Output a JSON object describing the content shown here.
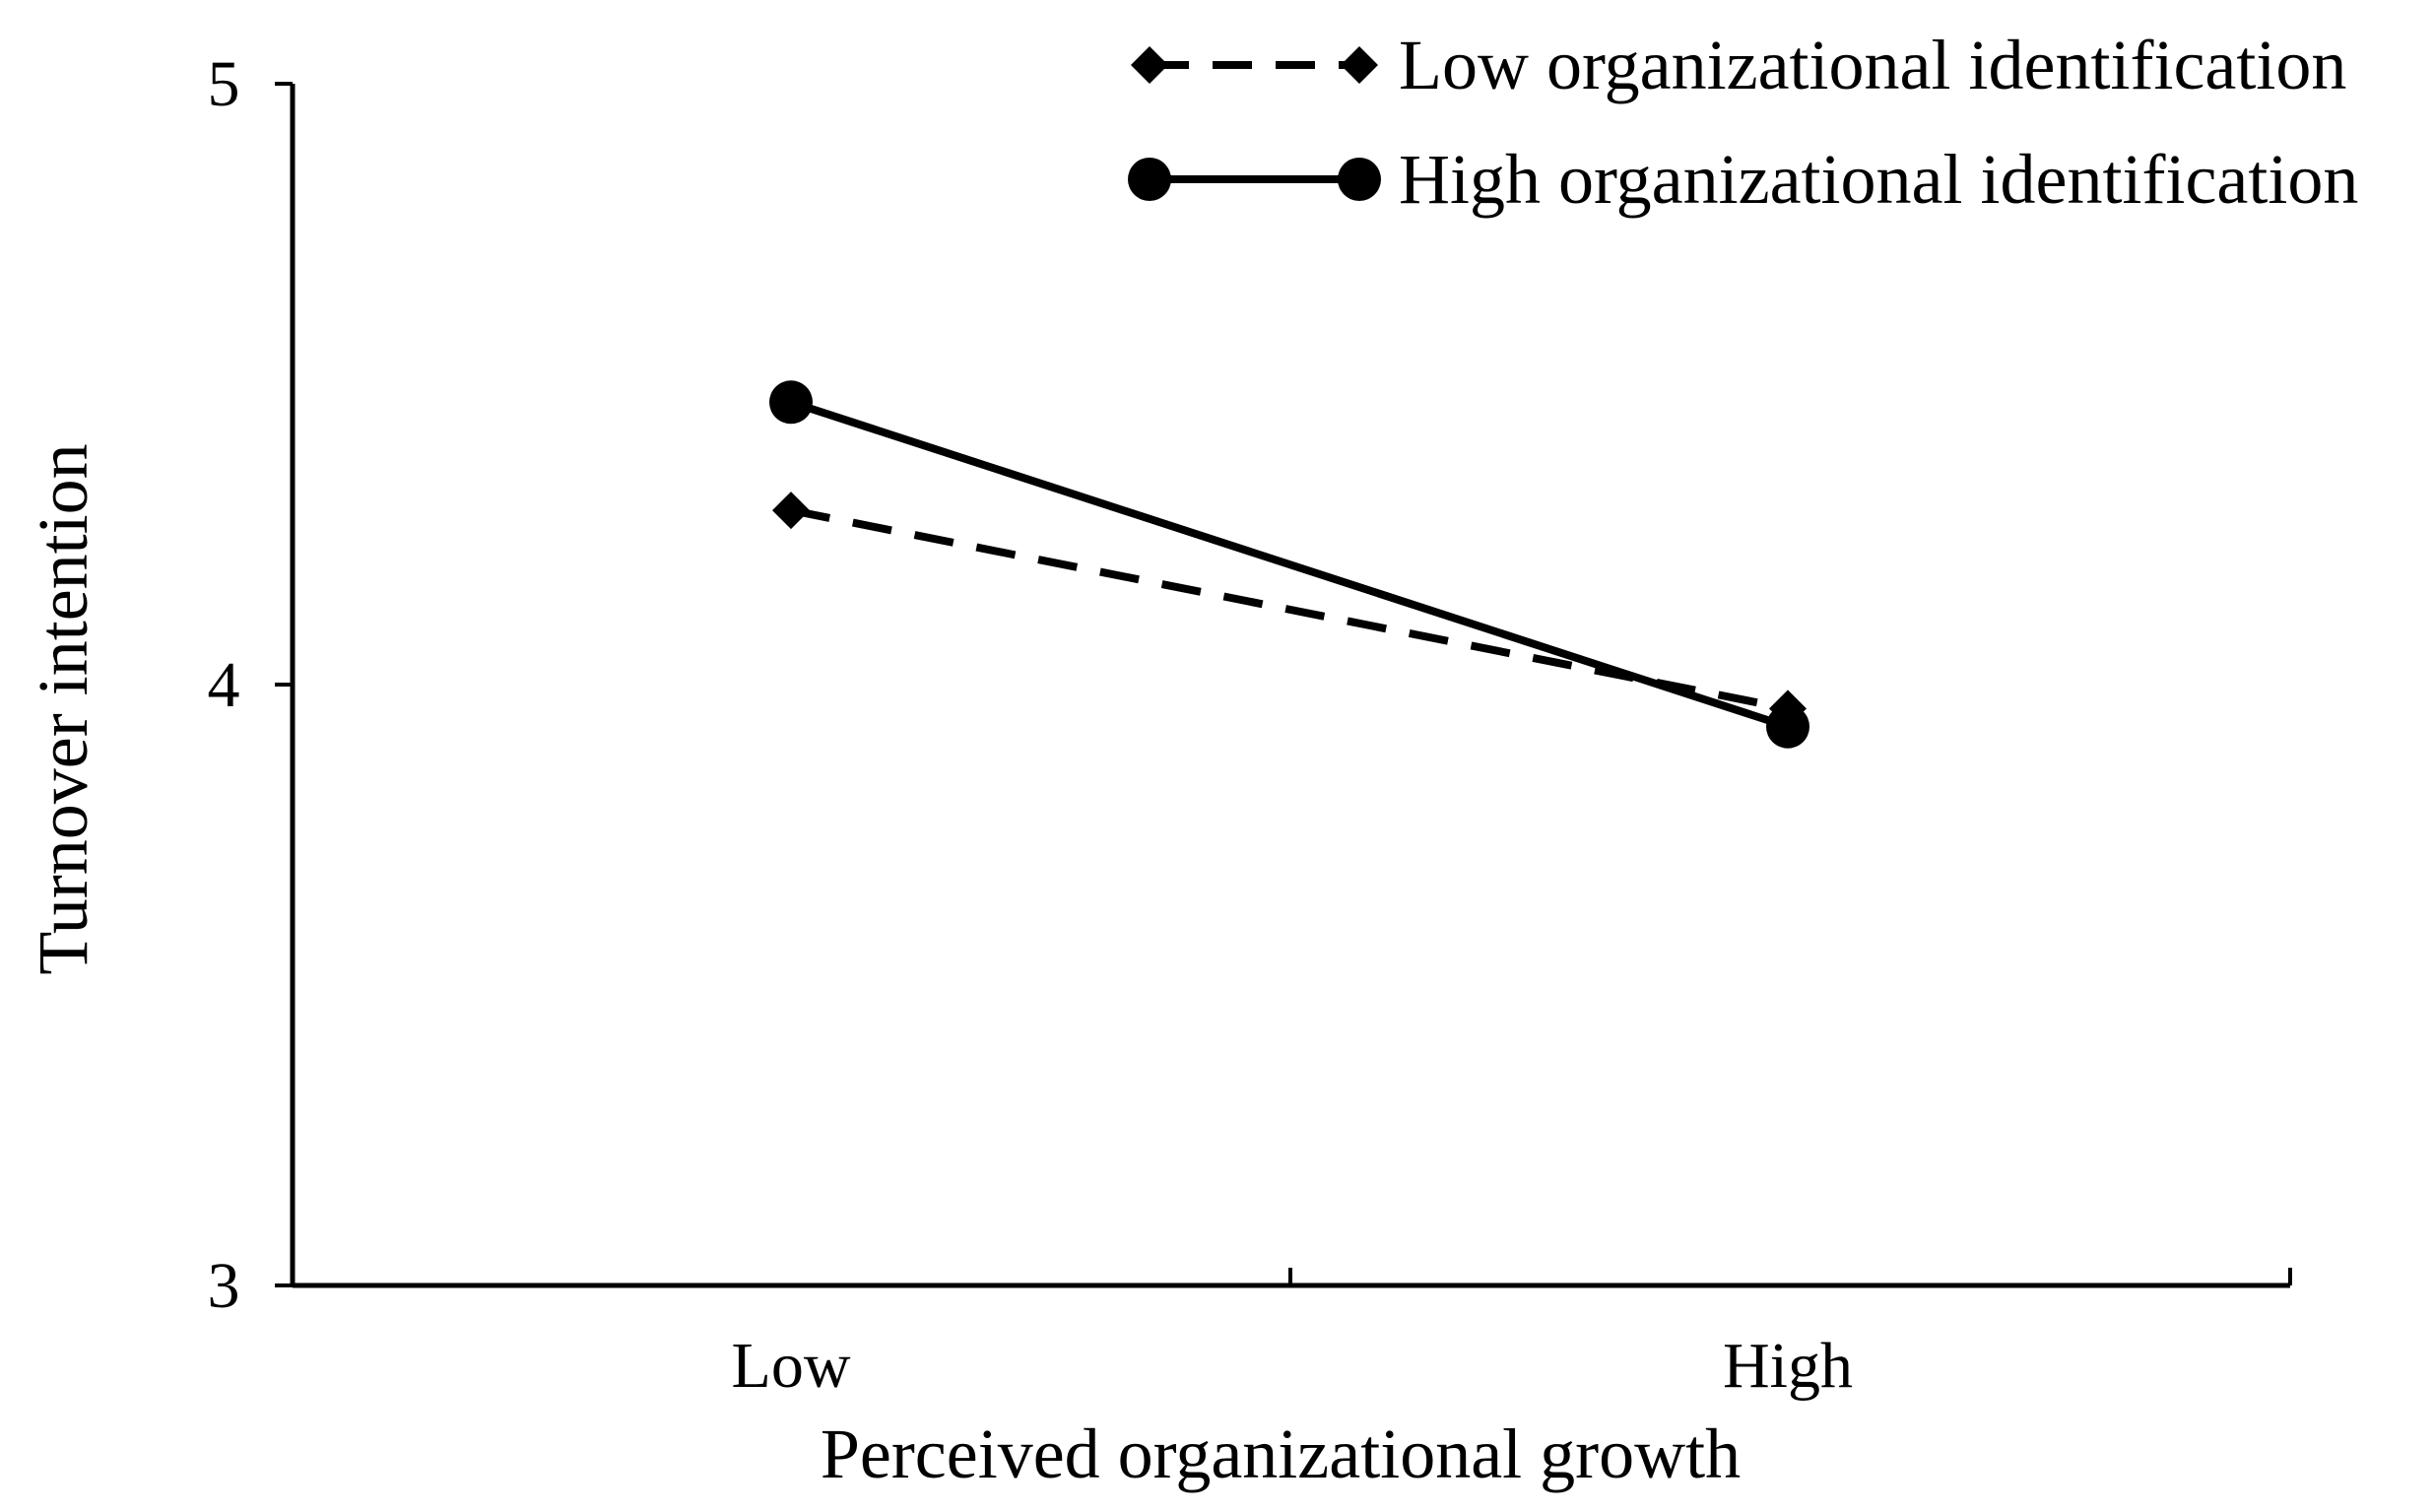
{
  "chart_data": {
    "type": "line",
    "title": "",
    "xlabel": "Perceived organizational growth",
    "ylabel": "Turnover intention",
    "categories": [
      "Low",
      "High"
    ],
    "ylim": [
      3,
      5
    ],
    "yticks": [
      "3",
      "4",
      "5"
    ],
    "grid": false,
    "legend_position": "top-right",
    "series": [
      {
        "name": "Low organizational identification",
        "values": [
          4.29,
          3.96
        ],
        "line_style": "dashed",
        "marker": "diamond",
        "color": "#000000"
      },
      {
        "name": "High organizational identification",
        "values": [
          4.47,
          3.93
        ],
        "line_style": "solid",
        "marker": "circle",
        "color": "#000000"
      }
    ]
  }
}
